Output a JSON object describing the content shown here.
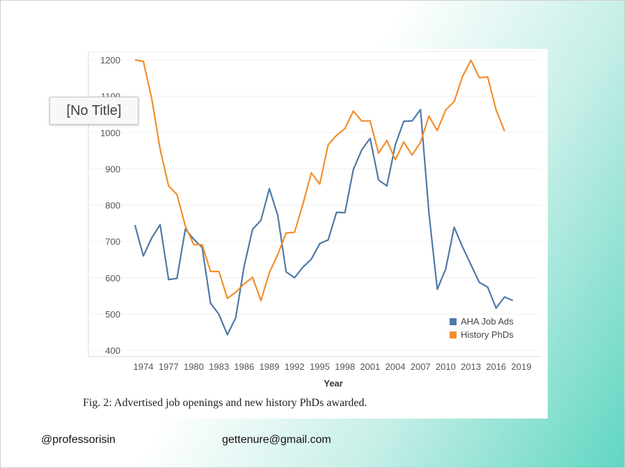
{
  "placeholder_label": "[No Title]",
  "caption": "Fig. 2: Advertised job openings and new history PhDs awarded.",
  "footer": {
    "handle": "@professorisin",
    "email": "gettenure@gmail.com"
  },
  "chart_data": {
    "type": "line",
    "title": "",
    "xlabel": "Year",
    "ylabel": "",
    "xlim": [
      1971,
      2019
    ],
    "ylim": [
      400,
      1200
    ],
    "x_ticks": [
      1974,
      1977,
      1980,
      1983,
      1986,
      1989,
      1992,
      1995,
      1998,
      2001,
      2004,
      2007,
      2010,
      2013,
      2016,
      2019
    ],
    "y_ticks": [
      400,
      500,
      600,
      700,
      800,
      900,
      1000,
      1100,
      1200
    ],
    "grid": true,
    "legend_position": "bottom-right",
    "series": [
      {
        "name": "AHA Job Ads",
        "color": "#4e79a7",
        "x": [
          1973,
          1974,
          1975,
          1976,
          1977,
          1978,
          1979,
          1980,
          1981,
          1982,
          1983,
          1984,
          1985,
          1986,
          1987,
          1988,
          1989,
          1990,
          1991,
          1992,
          1993,
          1994,
          1995,
          1996,
          1997,
          1998,
          1999,
          2000,
          2001,
          2002,
          2003,
          2004,
          2005,
          2006,
          2007,
          2008,
          2009,
          2010,
          2011,
          2012,
          2013,
          2014,
          2015,
          2016,
          2017,
          2018
        ],
        "values": [
          745,
          660,
          710,
          746,
          595,
          598,
          734,
          706,
          683,
          530,
          499,
          443,
          490,
          632,
          733,
          758,
          845,
          772,
          616,
          600,
          629,
          651,
          694,
          704,
          780,
          779,
          898,
          952,
          984,
          869,
          853,
          966,
          1031,
          1032,
          1063,
          778,
          568,
          624,
          739,
          685,
          636,
          587,
          574,
          516,
          547,
          537
        ]
      },
      {
        "name": "History PhDs",
        "color": "#f28e2b",
        "x": [
          1973,
          1974,
          1975,
          1976,
          1977,
          1978,
          1979,
          1980,
          1981,
          1982,
          1983,
          1984,
          1985,
          1986,
          1987,
          1988,
          1989,
          1990,
          1991,
          1992,
          1993,
          1994,
          1995,
          1996,
          1997,
          1998,
          1999,
          2000,
          2001,
          2002,
          2003,
          2004,
          2005,
          2006,
          2007,
          2008,
          2009,
          2010,
          2011,
          2012,
          2013,
          2014,
          2015,
          2016,
          2017
        ],
        "values": [
          1200,
          1196,
          1092,
          954,
          853,
          829,
          742,
          691,
          691,
          617,
          617,
          543,
          560,
          583,
          601,
          537,
          614,
          664,
          723,
          725,
          803,
          889,
          858,
          966,
          992,
          1011,
          1059,
          1032,
          1032,
          943,
          978,
          925,
          974,
          938,
          973,
          1045,
          1005,
          1062,
          1085,
          1154,
          1199,
          1151,
          1153,
          1062,
          1004
        ]
      }
    ]
  }
}
